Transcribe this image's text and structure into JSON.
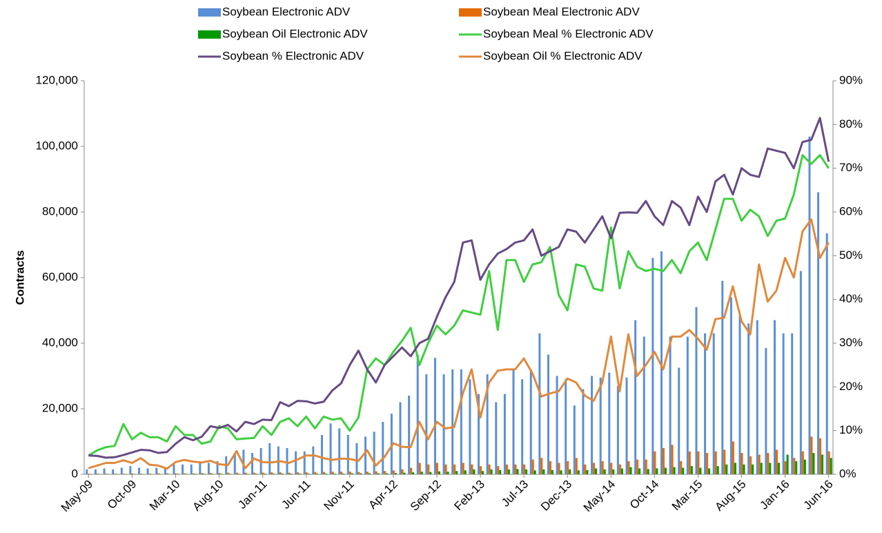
{
  "chart_data": {
    "type": "bar",
    "y_label": "Contracts",
    "categories": [
      "May-09",
      null,
      null,
      null,
      null,
      "Oct-09",
      null,
      null,
      null,
      null,
      "Mar-10",
      null,
      null,
      null,
      null,
      "Aug-10",
      null,
      null,
      null,
      null,
      "Jan-11",
      null,
      null,
      null,
      null,
      "Jun-11",
      null,
      null,
      null,
      null,
      "Nov-11",
      null,
      null,
      null,
      null,
      "Apr-12",
      null,
      null,
      null,
      null,
      "Sep-12",
      null,
      null,
      null,
      null,
      "Feb-13",
      null,
      null,
      null,
      null,
      "Jul-13",
      null,
      null,
      null,
      null,
      "Dec-13",
      null,
      null,
      null,
      null,
      "May-14",
      null,
      null,
      null,
      null,
      "Oct-14",
      null,
      null,
      null,
      null,
      "Mar-15",
      null,
      null,
      null,
      null,
      "Aug-15",
      null,
      null,
      null,
      null,
      "Jan-16",
      null,
      null,
      null,
      null,
      "Jun-16"
    ],
    "ylim": [
      0,
      120000
    ],
    "yticks": [
      0,
      {
        "value": 20000,
        "label": "20,000"
      },
      {
        "value": 40000,
        "label": "40,000"
      },
      {
        "value": 60000,
        "label": "60,000"
      },
      {
        "value": 80000,
        "label": "80,000"
      },
      {
        "value": 100000,
        "label": "100,000"
      },
      {
        "value": 120000,
        "label": "120,000"
      }
    ],
    "y2lim": [
      0,
      90
    ],
    "y2ticks": [
      {
        "value": 0,
        "label": "0%"
      },
      {
        "value": 10,
        "label": "10%"
      },
      {
        "value": 20,
        "label": "20%"
      },
      {
        "value": 30,
        "label": "30%"
      },
      {
        "value": 40,
        "label": "40%"
      },
      {
        "value": 50,
        "label": "50%"
      },
      {
        "value": 60,
        "label": "60%"
      },
      {
        "value": 70,
        "label": "70%"
      },
      {
        "value": 80,
        "label": "80%"
      },
      {
        "value": 90,
        "label": "90%"
      }
    ],
    "series": [
      {
        "name": "Soybean Electronic ADV",
        "type": "bar",
        "color": "#5b8fd6",
        "values": [
          1500,
          1500,
          1800,
          1500,
          2000,
          2500,
          2000,
          1800,
          2000,
          2000,
          3000,
          3000,
          3000,
          3500,
          3500,
          4000,
          5500,
          6500,
          7500,
          6500,
          8000,
          9500,
          8500,
          8000,
          7000,
          7000,
          8500,
          12000,
          15500,
          14000,
          12000,
          9500,
          11500,
          13000,
          16000,
          18500,
          22000,
          24000,
          36500,
          30500,
          35500,
          30500,
          32000,
          32000,
          29000,
          24500,
          30500,
          22000,
          24500,
          32000,
          29000,
          32000,
          43000,
          36500,
          30000,
          29000,
          21000,
          26000,
          30000,
          29500,
          31000,
          27000,
          29500,
          47000,
          42000,
          66000,
          68000,
          42000,
          32500,
          42000,
          51000,
          43000,
          43000,
          59000,
          54000,
          49000,
          46000,
          47000,
          38500,
          47000,
          43000,
          43000,
          62000,
          103000,
          86000,
          73500
        ]
      },
      {
        "name": "Soybean Meal Electronic ADV",
        "type": "bar",
        "color": "#e36c0a",
        "values": [
          200,
          200,
          200,
          200,
          200,
          300,
          200,
          200,
          300,
          300,
          300,
          300,
          300,
          400,
          400,
          400,
          500,
          500,
          500,
          500,
          500,
          600,
          600,
          500,
          600,
          600,
          700,
          700,
          800,
          800,
          800,
          700,
          800,
          900,
          1000,
          1200,
          1500,
          2000,
          3500,
          3000,
          3500,
          3000,
          3000,
          3500,
          3000,
          2500,
          3000,
          2500,
          3000,
          3000,
          3000,
          4500,
          5000,
          4000,
          3500,
          4000,
          5000,
          3000,
          3500,
          4000,
          3500,
          3000,
          4000,
          4500,
          4500,
          7000,
          8000,
          9000,
          4000,
          7000,
          7000,
          6500,
          7000,
          7500,
          10000,
          6500,
          5500,
          6000,
          6500,
          7500,
          4000,
          5000,
          7000,
          11500,
          11000,
          7000
        ]
      },
      {
        "name": "Soybean Oil Electronic ADV",
        "type": "bar",
        "color": "#009a00",
        "values": [
          100,
          100,
          100,
          100,
          100,
          100,
          100,
          100,
          100,
          100,
          150,
          150,
          150,
          150,
          150,
          150,
          150,
          150,
          150,
          150,
          200,
          200,
          200,
          200,
          200,
          200,
          200,
          200,
          200,
          200,
          300,
          300,
          300,
          300,
          300,
          400,
          500,
          600,
          800,
          700,
          900,
          800,
          1000,
          1200,
          1500,
          1000,
          1500,
          1300,
          1500,
          1600,
          1500,
          1200,
          1500,
          1300,
          1200,
          1500,
          1200,
          1300,
          1800,
          1500,
          1500,
          1800,
          2200,
          1800,
          1600,
          1800,
          2000,
          2200,
          2000,
          2500,
          2000,
          1800,
          2500,
          3000,
          3500,
          3000,
          3000,
          3500,
          3500,
          3500,
          6000,
          4000,
          4500,
          6500,
          6000,
          5000
        ]
      },
      {
        "name": "Soybean Meal % Electronic ADV",
        "type": "line",
        "axis": "y2",
        "color": "#3fcf3f",
        "values": [
          4.3,
          5.5,
          6.2,
          6.5,
          11.5,
          8,
          9.5,
          8.5,
          8.5,
          7.5,
          11,
          9,
          9,
          7,
          7.5,
          11,
          10.5,
          8,
          8.2,
          8.3,
          11,
          9,
          12,
          12.8,
          11,
          13.2,
          10.5,
          13.2,
          12.5,
          12.8,
          10,
          13,
          24,
          26.5,
          25,
          28,
          30.5,
          33.5,
          25,
          30,
          34,
          32,
          34,
          37.5,
          37,
          36.5,
          46.5,
          33,
          49,
          49,
          44,
          48,
          48.5,
          52,
          41,
          37.5,
          48,
          47.5,
          42.5,
          42,
          56.5,
          42.5,
          51,
          47.5,
          46.5,
          47,
          46.5,
          49,
          46,
          51,
          53,
          49,
          56,
          63,
          63,
          58,
          60.5,
          59,
          54.5,
          58,
          58.5,
          64,
          73,
          71,
          73,
          70
        ]
      },
      {
        "name": "Soybean % Electronic ADV",
        "type": "line",
        "axis": "y2",
        "color": "#664a85",
        "values": [
          4.3,
          4.2,
          3.8,
          3.9,
          4.4,
          5.0,
          5.6,
          5.5,
          4.9,
          5.1,
          7.0,
          8.5,
          7.8,
          8.6,
          11,
          10.6,
          11.3,
          9.8,
          12,
          11.5,
          12.5,
          12.4,
          16.5,
          15.6,
          16.8,
          16.7,
          16.2,
          16.6,
          19.2,
          20.8,
          25,
          28.3,
          24,
          21,
          25,
          27,
          29,
          27,
          30,
          31,
          36,
          40.5,
          44,
          53,
          53.5,
          44.5,
          48,
          50.5,
          51.5,
          53,
          53.5,
          56,
          50,
          51,
          52,
          56,
          55.5,
          53,
          56,
          59,
          54,
          59.8,
          59.9,
          59.8,
          62.5,
          59,
          57,
          62.5,
          61,
          57,
          63.5,
          60,
          67,
          68.5,
          64,
          70,
          68.5,
          68,
          74.5,
          74,
          73.5,
          70,
          76,
          76.5,
          81.5,
          71.5
        ]
      },
      {
        "name": "Soybean Oil % Electronic ADV",
        "type": "line",
        "axis": "y2",
        "color": "#e0893c",
        "values": [
          1.4,
          2,
          2.6,
          2.6,
          3.2,
          2.6,
          3.7,
          2.2,
          2,
          1.3,
          2.8,
          3.3,
          2.9,
          2.7,
          3.1,
          2.3,
          2.1,
          5.3,
          1.4,
          3.6,
          2.8,
          2.7,
          3.0,
          2.6,
          3.4,
          4.3,
          4.3,
          3.7,
          3.3,
          3.6,
          3.5,
          3.1,
          5.5,
          2.0,
          4.0,
          7.1,
          6.3,
          6.2,
          12,
          8,
          12,
          10.5,
          10.8,
          18.6,
          24,
          13,
          21,
          23.7,
          24,
          24,
          26.5,
          23,
          17.8,
          18.5,
          19,
          21.9,
          21,
          18,
          16.8,
          21,
          31.5,
          19,
          32,
          22.5,
          25,
          28,
          24,
          31.5,
          31.5,
          33,
          31,
          28.5,
          35.5,
          35.8,
          43,
          35,
          32,
          48,
          39.5,
          42,
          49.5,
          45,
          55.5,
          58.3,
          49.5,
          53
        ]
      }
    ]
  }
}
